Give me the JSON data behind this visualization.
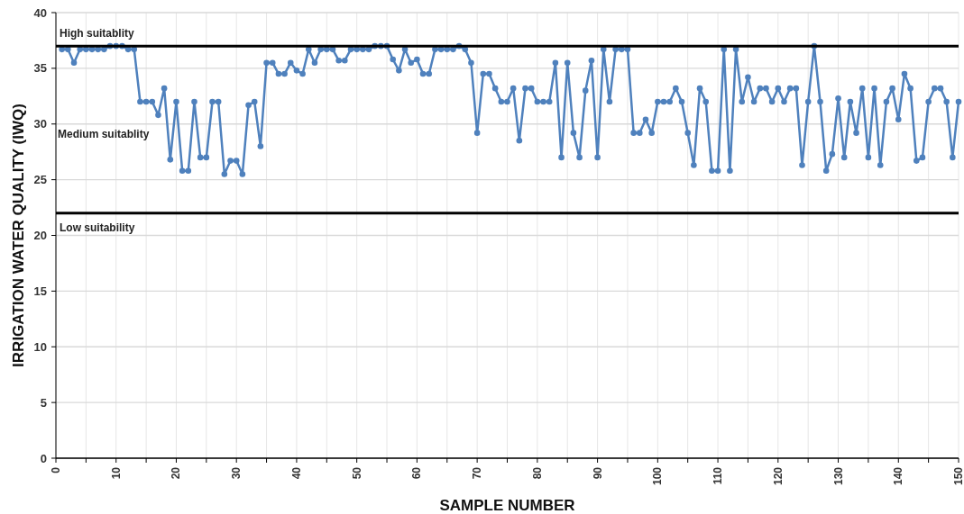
{
  "chart_data": {
    "type": "line",
    "xlabel": "SAMPLE NUMBER",
    "ylabel": "IRRIGATION WATER QUALITY (IWQ)",
    "x": [
      1,
      2,
      3,
      4,
      5,
      6,
      7,
      8,
      9,
      10,
      11,
      12,
      13,
      14,
      15,
      16,
      17,
      18,
      19,
      20,
      21,
      22,
      23,
      24,
      25,
      26,
      27,
      28,
      29,
      30,
      31,
      32,
      33,
      34,
      35,
      36,
      37,
      38,
      39,
      40,
      41,
      42,
      43,
      44,
      45,
      46,
      47,
      48,
      49,
      50,
      51,
      52,
      53,
      54,
      55,
      56,
      57,
      58,
      59,
      60,
      61,
      62,
      63,
      64,
      65,
      66,
      67,
      68,
      69,
      70,
      71,
      72,
      73,
      74,
      75,
      76,
      77,
      78,
      79,
      80,
      81,
      82,
      83,
      84,
      85,
      86,
      87,
      88,
      89,
      90,
      91,
      92,
      93,
      94,
      95,
      96,
      97,
      98,
      99,
      100,
      101,
      102,
      103,
      104,
      105,
      106,
      107,
      108,
      109,
      110,
      111,
      112,
      113,
      114,
      115,
      116,
      117,
      118,
      119,
      120,
      121,
      122,
      123,
      124,
      125,
      126,
      127,
      128,
      129,
      130,
      131,
      132,
      133,
      134,
      135,
      136,
      137,
      138,
      139,
      140,
      141,
      142,
      143,
      144,
      145,
      146,
      147,
      148,
      149,
      150
    ],
    "series": [
      {
        "color": "#4f81bd",
        "values": [
          36.7,
          36.7,
          35.5,
          36.7,
          36.7,
          36.7,
          36.7,
          36.7,
          37,
          37,
          37,
          36.7,
          36.7,
          32,
          32,
          32,
          30.8,
          33.2,
          26.8,
          32,
          25.8,
          25.8,
          32,
          27,
          27,
          32,
          32,
          25.5,
          26.7,
          26.7,
          25.5,
          31.7,
          32,
          28,
          35.5,
          35.5,
          34.5,
          34.5,
          35.5,
          34.8,
          34.5,
          36.7,
          35.5,
          36.7,
          36.7,
          36.7,
          35.7,
          35.7,
          36.7,
          36.7,
          36.7,
          36.7,
          37,
          37,
          37,
          35.8,
          34.8,
          36.7,
          35.5,
          35.8,
          34.5,
          34.5,
          36.7,
          36.7,
          36.7,
          36.7,
          37,
          36.7,
          35.5,
          29.2,
          34.5,
          34.5,
          33.2,
          32,
          32,
          33.2,
          28.5,
          33.2,
          33.2,
          32,
          32,
          32,
          35.5,
          27,
          35.5,
          29.2,
          27,
          33,
          35.7,
          27,
          36.7,
          32,
          36.7,
          36.7,
          36.7,
          29.2,
          29.2,
          30.4,
          29.2,
          32,
          32,
          32,
          33.2,
          32,
          29.2,
          26.3,
          33.2,
          32,
          25.8,
          25.8,
          36.7,
          25.8,
          36.7,
          32,
          34.2,
          32,
          33.2,
          33.2,
          32,
          33.2,
          32,
          33.2,
          33.2,
          26.3,
          32,
          37,
          32,
          25.8,
          27.3,
          32.3,
          27,
          32,
          29.2,
          33.2,
          27,
          33.2,
          26.3,
          32,
          33.2,
          30.4,
          34.5,
          33.2,
          26.7,
          27,
          32,
          33.2,
          33.2,
          32,
          27,
          32
        ]
      }
    ],
    "xlim": [
      0,
      150
    ],
    "xticks": [
      0,
      {
        "value": 5,
        "label": null
      },
      10,
      {
        "value": 15,
        "label": null
      },
      20,
      {
        "value": 25,
        "label": null
      },
      30,
      {
        "value": 35,
        "label": null
      },
      40,
      {
        "value": 45,
        "label": null
      },
      50,
      {
        "value": 55,
        "label": null
      },
      60,
      {
        "value": 65,
        "label": null
      },
      70,
      {
        "value": 75,
        "label": null
      },
      80,
      {
        "value": 85,
        "label": null
      },
      90,
      {
        "value": 95,
        "label": null
      },
      100,
      {
        "value": 105,
        "label": null
      },
      110,
      {
        "value": 115,
        "label": null
      },
      120,
      {
        "value": 125,
        "label": null
      },
      130,
      {
        "value": 135,
        "label": null
      },
      140,
      {
        "value": 145,
        "label": null
      },
      150
    ],
    "ylim": [
      0,
      40
    ],
    "yticks": [
      0,
      5,
      10,
      15,
      20,
      25,
      30,
      35,
      40
    ],
    "grid": true,
    "marker": "circle",
    "line_style": "solid",
    "ref_lines": [
      {
        "axis": "y",
        "value": 37,
        "label": "High suitablity",
        "color": "#000000"
      },
      {
        "axis": "y",
        "value": 22,
        "label": "Low suitability",
        "color": "#000000"
      }
    ],
    "annotations": [
      "Medium suitablity"
    ]
  }
}
